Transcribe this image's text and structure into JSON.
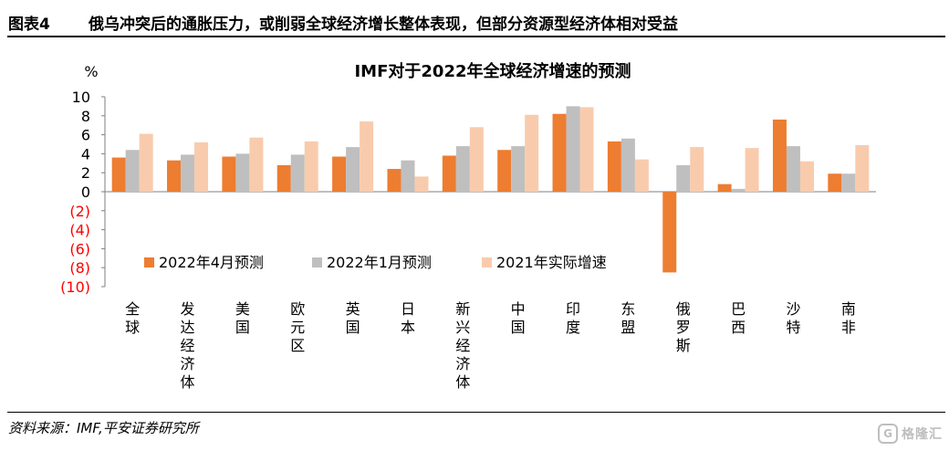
{
  "header": {
    "figure_label": "图表4",
    "figure_title": "俄乌冲突后的通胀压力，或削弱全球经济增长整体表现，但部分资源型经济体相对受益"
  },
  "source": "资料来源：IMF,平安证券研究所",
  "watermark": "格隆汇",
  "colors": {
    "series_apr": "#ED7D31",
    "series_jan": "#BFBFBF",
    "series_2021": "#F8CBAD",
    "negative_tick": "#FF0000"
  },
  "chart_data": {
    "type": "bar",
    "title": "IMF对于2022年全球经济增速的预测",
    "unit_label": "%",
    "ylim": [
      -10,
      10
    ],
    "yticks": [
      10,
      8,
      6,
      4,
      2,
      0,
      -2,
      -4,
      -6,
      -8,
      -10
    ],
    "ytick_labels": [
      "10",
      "8",
      "6",
      "4",
      "2",
      "0",
      "(2)",
      "(4)",
      "(6)",
      "(8)",
      "(10)"
    ],
    "grid": false,
    "legend_position": "lower-left inside",
    "categories": [
      "全球",
      "发达经济体",
      "美国",
      "欧元区",
      "英国",
      "日本",
      "新兴经济体",
      "中国",
      "印度",
      "东盟",
      "俄罗斯",
      "巴西",
      "沙特",
      "南非"
    ],
    "series": [
      {
        "name": "2022年4月预测",
        "color": "#ED7D31",
        "values": [
          3.6,
          3.3,
          3.7,
          2.8,
          3.7,
          2.4,
          3.8,
          4.4,
          8.2,
          5.3,
          -8.5,
          0.8,
          7.6,
          1.9
        ]
      },
      {
        "name": "2022年1月预测",
        "color": "#BFBFBF",
        "values": [
          4.4,
          3.9,
          4.0,
          3.9,
          4.7,
          3.3,
          4.8,
          4.8,
          9.0,
          5.6,
          2.8,
          0.3,
          4.8,
          1.9
        ]
      },
      {
        "name": "2021年实际增速",
        "color": "#F8CBAD",
        "values": [
          6.1,
          5.2,
          5.7,
          5.3,
          7.4,
          1.6,
          6.8,
          8.1,
          8.9,
          3.4,
          4.7,
          4.6,
          3.2,
          4.9
        ]
      }
    ]
  }
}
